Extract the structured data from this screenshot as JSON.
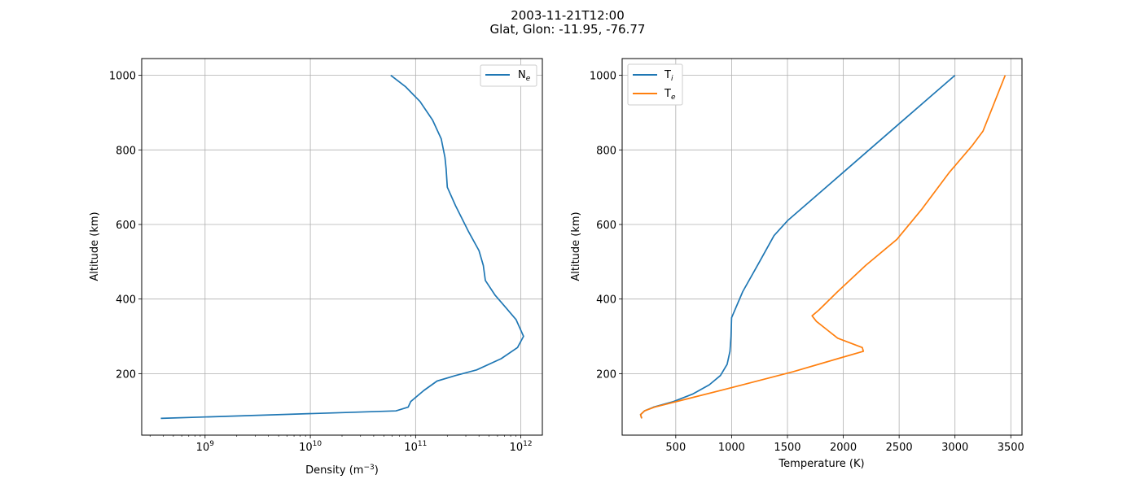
{
  "figure": {
    "title": "2003-11-21T12:00",
    "subtitle": "Glat, Glon: -11.95, -76.77"
  },
  "chart_data": [
    {
      "type": "line",
      "xlabel": "Density (m",
      "xlabel_sup": "−3",
      "xlabel_tail": ")",
      "ylabel": "Altitude (km)",
      "xscale": "log",
      "xlim": [
        250000000.0,
        1600000000000.0
      ],
      "ylim": [
        35,
        1045
      ],
      "xticks": [
        {
          "value": 1000000000.0,
          "base": "10",
          "exp": "9"
        },
        {
          "value": 10000000000.0,
          "base": "10",
          "exp": "10"
        },
        {
          "value": 100000000000.0,
          "base": "10",
          "exp": "11"
        },
        {
          "value": 1000000000000.0,
          "base": "10",
          "exp": "12"
        }
      ],
      "yticks": [
        {
          "value": 200,
          "label": "200"
        },
        {
          "value": 400,
          "label": "400"
        },
        {
          "value": 600,
          "label": "600"
        },
        {
          "value": 800,
          "label": "800"
        },
        {
          "value": 1000,
          "label": "1000"
        }
      ],
      "grid": true,
      "legend_position": "top-right",
      "series": [
        {
          "name": "N",
          "name_sub": "e",
          "color": "#1f77b4",
          "points": [
            [
              380000000.0,
              80
            ],
            [
              65000000000.0,
              100
            ],
            [
              85000000000.0,
              110
            ],
            [
              90000000000.0,
              125
            ],
            [
              120000000000.0,
              155
            ],
            [
              160000000000.0,
              180
            ],
            [
              240000000000.0,
              195
            ],
            [
              380000000000.0,
              210
            ],
            [
              650000000000.0,
              240
            ],
            [
              930000000000.0,
              270
            ],
            [
              1060000000000.0,
              300
            ],
            [
              900000000000.0,
              345
            ],
            [
              730000000000.0,
              375
            ],
            [
              570000000000.0,
              410
            ],
            [
              460000000000.0,
              450
            ],
            [
              440000000000.0,
              490
            ],
            [
              400000000000.0,
              530
            ],
            [
              320000000000.0,
              580
            ],
            [
              240000000000.0,
              650
            ],
            [
              200000000000.0,
              700
            ],
            [
              195000000000.0,
              750
            ],
            [
              190000000000.0,
              780
            ],
            [
              175000000000.0,
              830
            ],
            [
              145000000000.0,
              880
            ],
            [
              110000000000.0,
              930
            ],
            [
              80000000000.0,
              970
            ],
            [
              58000000000.0,
              1000
            ]
          ]
        }
      ]
    },
    {
      "type": "line",
      "xlabel": "Temperature (K)",
      "ylabel": "Altitude (km)",
      "xscale": "linear",
      "xlim": [
        20,
        3600
      ],
      "ylim": [
        35,
        1045
      ],
      "xticks": [
        {
          "value": 500,
          "label": "500"
        },
        {
          "value": 1000,
          "label": "1000"
        },
        {
          "value": 1500,
          "label": "1500"
        },
        {
          "value": 2000,
          "label": "2000"
        },
        {
          "value": 2500,
          "label": "2500"
        },
        {
          "value": 3000,
          "label": "3000"
        },
        {
          "value": 3500,
          "label": "3500"
        }
      ],
      "yticks": [
        {
          "value": 200,
          "label": "200"
        },
        {
          "value": 400,
          "label": "400"
        },
        {
          "value": 600,
          "label": "600"
        },
        {
          "value": 800,
          "label": "800"
        },
        {
          "value": 1000,
          "label": "1000"
        }
      ],
      "grid": true,
      "legend_position": "top-left",
      "series": [
        {
          "name": "T",
          "name_sub": "i",
          "color": "#1f77b4",
          "points": [
            [
              195,
              80
            ],
            [
              185,
              90
            ],
            [
              220,
              100
            ],
            [
              300,
              110
            ],
            [
              480,
              125
            ],
            [
              650,
              145
            ],
            [
              800,
              170
            ],
            [
              900,
              195
            ],
            [
              960,
              225
            ],
            [
              985,
              260
            ],
            [
              995,
              300
            ],
            [
              1000,
              350
            ],
            [
              1100,
              420
            ],
            [
              1250,
              500
            ],
            [
              1380,
              570
            ],
            [
              1500,
              610
            ],
            [
              2000,
              740
            ],
            [
              2500,
              870
            ],
            [
              3000,
              1000
            ]
          ]
        },
        {
          "name": "T",
          "name_sub": "e",
          "color": "#ff7f0e",
          "points": [
            [
              195,
              80
            ],
            [
              185,
              90
            ],
            [
              220,
              100
            ],
            [
              310,
              110
            ],
            [
              600,
              132
            ],
            [
              1100,
              170
            ],
            [
              1550,
              205
            ],
            [
              1950,
              240
            ],
            [
              2180,
              260
            ],
            [
              2170,
              270
            ],
            [
              1950,
              295
            ],
            [
              1760,
              340
            ],
            [
              1720,
              355
            ],
            [
              1780,
              370
            ],
            [
              1950,
              420
            ],
            [
              2200,
              490
            ],
            [
              2480,
              560
            ],
            [
              2700,
              640
            ],
            [
              2950,
              740
            ],
            [
              3150,
              810
            ],
            [
              3250,
              850
            ],
            [
              3330,
              910
            ],
            [
              3450,
              1000
            ]
          ]
        }
      ]
    }
  ]
}
